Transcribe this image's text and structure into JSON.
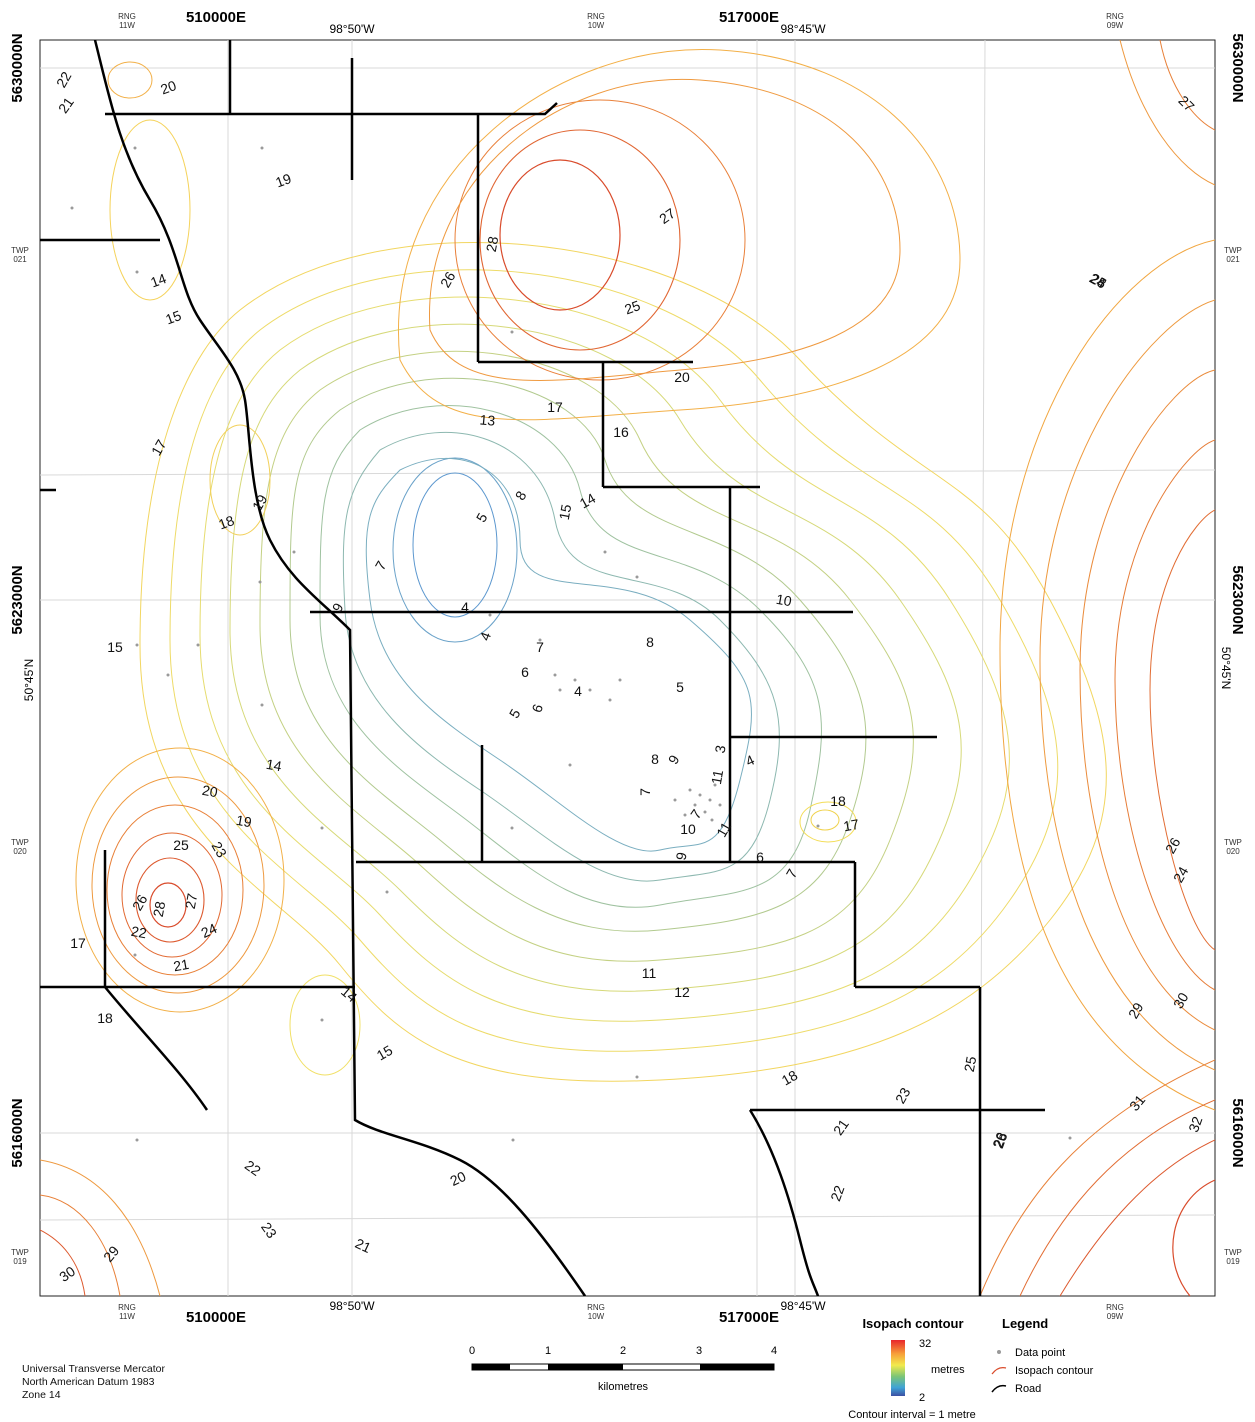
{
  "grid": {
    "easting_top": [
      "510000E",
      "517000E"
    ],
    "easting_bottom": [
      "510000E",
      "517000E"
    ],
    "northing_left": [
      "5630000N",
      "5623000N",
      "5616000N"
    ],
    "northing_right": [
      "5630000N",
      "5623000N",
      "5616000N"
    ],
    "longitude": [
      "98°50'W",
      "98°45'W"
    ],
    "latitude": "50°45'N",
    "ranges": [
      {
        "rng": "RNG",
        "num": "11W"
      },
      {
        "rng": "RNG",
        "num": "10W"
      },
      {
        "rng": "RNG",
        "num": "09W"
      }
    ],
    "townships": [
      {
        "twp": "TWP",
        "num": "021"
      },
      {
        "twp": "TWP",
        "num": "020"
      },
      {
        "twp": "TWP",
        "num": "019"
      }
    ]
  },
  "contour_labels": [
    "22",
    "20",
    "21",
    "19",
    "14",
    "15",
    "17",
    "19",
    "18",
    "28",
    "26",
    "27",
    "25",
    "20",
    "17",
    "13",
    "16",
    "24",
    "8",
    "5",
    "15",
    "14",
    "7",
    "4",
    "10",
    "9",
    "4",
    "7",
    "8",
    "6",
    "4",
    "5",
    "5",
    "6",
    "3",
    "8",
    "9",
    "4",
    "7",
    "11",
    "7",
    "10",
    "11",
    "9",
    "6",
    "7",
    "18",
    "17",
    "15",
    "14",
    "20",
    "19",
    "25",
    "23",
    "26",
    "28",
    "27",
    "22",
    "24",
    "21",
    "17",
    "18",
    "14",
    "15",
    "11",
    "12",
    "18",
    "21",
    "23",
    "25",
    "22",
    "29",
    "30",
    "31",
    "32",
    "28",
    "26",
    "24",
    "27",
    "25",
    "28",
    "26",
    "29",
    "30",
    "22",
    "23",
    "21",
    "20"
  ],
  "legend": {
    "isopach_title": "Isopach contour",
    "max": "32",
    "min": "2",
    "unit": "metres",
    "interval": "Contour interval = 1 metre",
    "title": "Legend",
    "items": [
      "Data point",
      "Isopach contour",
      "Road"
    ]
  },
  "scale_bar": {
    "ticks": [
      "0",
      "1",
      "2",
      "3",
      "4"
    ],
    "unit": "kilometres"
  },
  "projection": {
    "lines": [
      "Universal Transverse Mercator",
      "North American Datum 1983",
      "Zone 14"
    ]
  },
  "colors": {
    "thick": "#d94b2b",
    "thick_mid": "#f1a640",
    "mid": "#e8d66a",
    "green": "#a7c48b",
    "thin": "#6a9fcf",
    "road": "#000000",
    "point": "#999999"
  }
}
